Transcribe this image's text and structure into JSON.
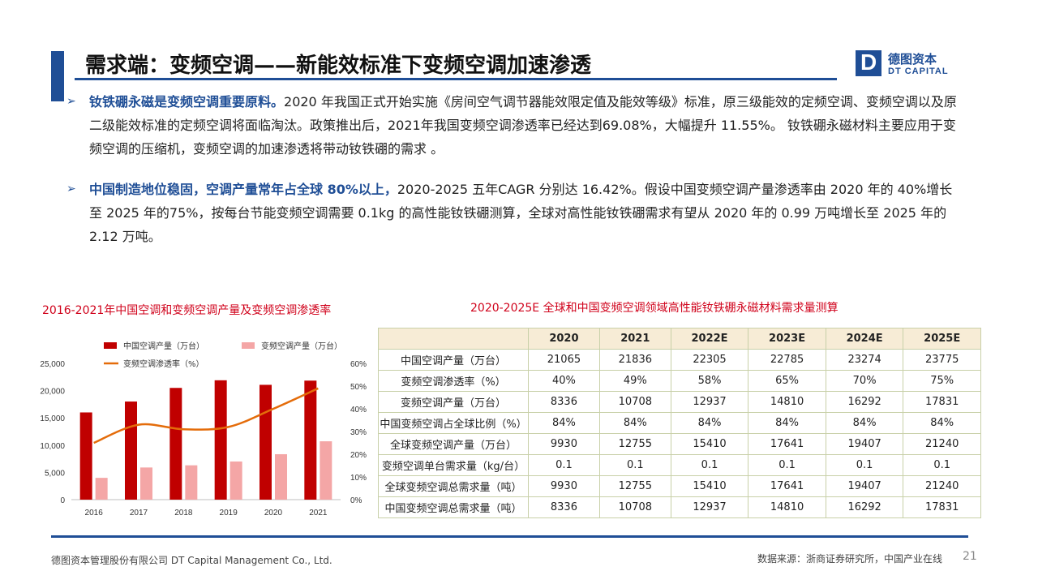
{
  "header": {
    "title": "需求端：变频空调——新能效标准下变频空调加速渗透",
    "logo_cn": "德图资本",
    "logo_en": "DT CAPITAL"
  },
  "bullets": [
    {
      "lead": "钕铁硼永磁是变频空调重要原料。",
      "text": "2020 年我国正式开始实施《房间空气调节器能效限定值及能效等级》标准，原三级能效的定频空调、变频空调以及原二级能效标准的定频空调将面临淘汰。政策推出后，2021年我国变频空调渗透率已经达到69.08%，大幅提升 11.55%。 钕铁硼永磁材料主要应用于变频空调的压缩机，变频空调的加速渗透将带动钕铁硼的需求 。"
    },
    {
      "lead": "中国制造地位稳固，空调产量常年占全球 80%以上，",
      "text": "2020-2025 五年CAGR 分别达 16.42%。假设中国变频空调产量渗透率由 2020 年的 40%增长至 2025 年的75%，按每台节能变频空调需要 0.1kg 的高性能钕铁硼测算，全球对高性能钕铁硼需求有望从 2020 年的 0.99 万吨增长至 2025 年的 2.12 万吨。"
    }
  ],
  "chart_data": {
    "type": "bar",
    "title": "2016-2021年中国空调和变频空调产量及变频空调渗透率",
    "categories": [
      "2016",
      "2017",
      "2018",
      "2019",
      "2020",
      "2021"
    ],
    "series": [
      {
        "name": "中国空调产量（万台）",
        "type": "bar",
        "axis": "left",
        "color": "#c00000",
        "values": [
          16000,
          18000,
          20500,
          21900,
          21065,
          21836
        ]
      },
      {
        "name": "变频空调产量（万台）",
        "type": "bar",
        "axis": "left",
        "color": "#f4a6a6",
        "values": [
          4000,
          5900,
          6300,
          7000,
          8336,
          10708
        ]
      },
      {
        "name": "变频空调渗透率（%）",
        "type": "line",
        "axis": "right",
        "color": "#e46c0a",
        "values": [
          25,
          33,
          31,
          32,
          40,
          49
        ]
      }
    ],
    "yticks_left": [
      "25,000",
      "20,000",
      "15,000",
      "10,000",
      "5,000",
      "0"
    ],
    "yticks_right": [
      "60%",
      "50%",
      "40%",
      "30%",
      "20%",
      "10%",
      "0%"
    ],
    "ylim_left": [
      0,
      25000
    ],
    "ylim_right": [
      0,
      60
    ],
    "legend_position": "top",
    "grid": false
  },
  "table": {
    "title": "2020-2025E 全球和中国变频空调领域高性能钕铁硼永磁材料需求量测算",
    "headers": [
      "",
      "2020",
      "2021",
      "2022E",
      "2023E",
      "2024E",
      "2025E"
    ],
    "rows": [
      [
        "中国空调产量（万台）",
        "21065",
        "21836",
        "22305",
        "22785",
        "23274",
        "23775"
      ],
      [
        "变频空调渗透率（%）",
        "40%",
        "49%",
        "58%",
        "65%",
        "70%",
        "75%"
      ],
      [
        "变频空调产量（万台）",
        "8336",
        "10708",
        "12937",
        "14810",
        "16292",
        "17831"
      ],
      [
        "中国变频空调占全球比例（%）",
        "84%",
        "84%",
        "84%",
        "84%",
        "84%",
        "84%"
      ],
      [
        "全球变频空调产量（万台）",
        "9930",
        "12755",
        "15410",
        "17641",
        "19407",
        "21240"
      ],
      [
        "变频空调单台需求量（kg/台）",
        "0.1",
        "0.1",
        "0.1",
        "0.1",
        "0.1",
        "0.1"
      ],
      [
        "全球变频空调总需求量（吨）",
        "9930",
        "12755",
        "15410",
        "17641",
        "19407",
        "21240"
      ],
      [
        "中国变频空调总需求量（吨）",
        "8336",
        "10708",
        "12937",
        "14810",
        "16292",
        "17831"
      ]
    ]
  },
  "footer": {
    "company": "德图资本管理股份有限公司  DT Capital Management  Co., Ltd.",
    "source": "数据来源：浙商证券研究所，中国产业在线",
    "page": "21"
  }
}
